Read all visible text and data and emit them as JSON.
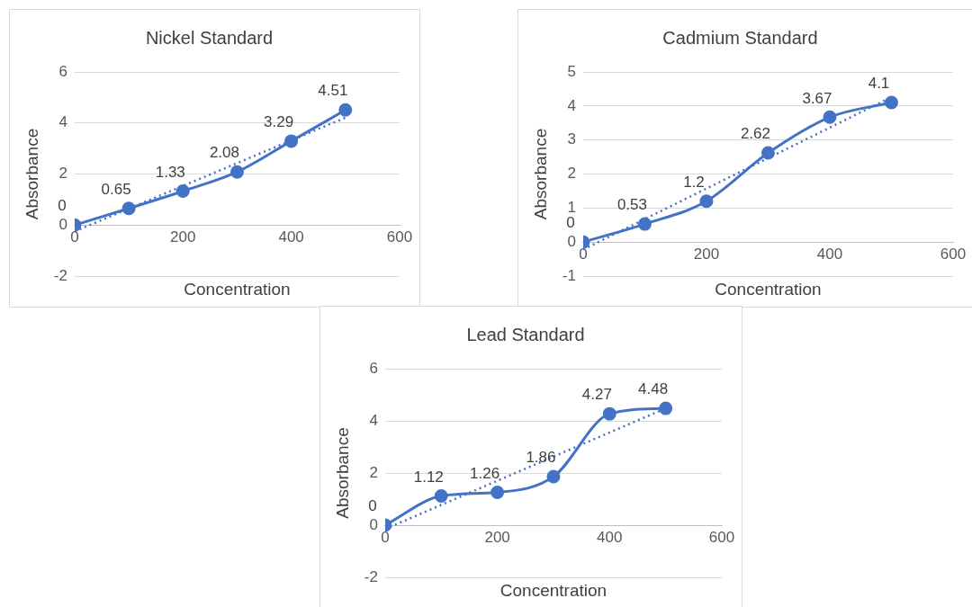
{
  "chart_data": [
    {
      "type": "line",
      "title": "Nickel Standard",
      "xlabel": "Concentration",
      "ylabel": "Absorbance",
      "xlim": [
        0,
        600
      ],
      "xticks": [
        0,
        200,
        400,
        600
      ],
      "ylim": [
        -2,
        6
      ],
      "yticks": [
        -2,
        0,
        2,
        4,
        6
      ],
      "grid": "y",
      "legend": false,
      "series": [
        {
          "color": "#4472c4",
          "x": [
            0,
            100,
            200,
            300,
            400,
            500
          ],
          "values": [
            0,
            0.65,
            1.33,
            2.08,
            3.29,
            4.51
          ],
          "value_labels": [
            "0",
            "0.65",
            "1.33",
            "2.08",
            "3.29",
            "4.51"
          ],
          "marker": "circle",
          "line_style": "solid"
        },
        {
          "type": "line",
          "color": "#4472c4",
          "x": [
            0,
            500
          ],
          "values": [
            -0.25,
            4.21
          ],
          "marker": "none",
          "line_style": "dotted"
        }
      ]
    },
    {
      "type": "line",
      "title": "Cadmium Standard",
      "xlabel": "Concentration",
      "ylabel": "Absorbance",
      "xlim": [
        0,
        600
      ],
      "xticks": [
        0,
        200,
        400,
        600
      ],
      "ylim": [
        -1,
        5
      ],
      "yticks": [
        -1,
        0,
        1,
        2,
        3,
        4,
        5
      ],
      "grid": "y",
      "legend": false,
      "series": [
        {
          "color": "#4472c4",
          "x": [
            0,
            100,
            200,
            300,
            400,
            500
          ],
          "values": [
            0,
            0.53,
            1.2,
            2.62,
            3.67,
            4.1
          ],
          "value_labels": [
            "0",
            "0.53",
            "1.2",
            "2.62",
            "3.67",
            "4.1"
          ],
          "marker": "circle",
          "line_style": "solid"
        },
        {
          "type": "line",
          "color": "#4472c4",
          "x": [
            0,
            500
          ],
          "values": [
            -0.22,
            4.26
          ],
          "marker": "none",
          "line_style": "dotted"
        }
      ]
    },
    {
      "type": "line",
      "title": "Lead Standard",
      "xlabel": "Concentration",
      "ylabel": "Absorbance",
      "xlim": [
        0,
        600
      ],
      "xticks": [
        0,
        200,
        400,
        600
      ],
      "ylim": [
        -2,
        6
      ],
      "yticks": [
        -2,
        0,
        2,
        4,
        6
      ],
      "grid": "y",
      "legend": false,
      "series": [
        {
          "color": "#4472c4",
          "x": [
            0,
            100,
            200,
            300,
            400,
            500
          ],
          "values": [
            0,
            1.12,
            1.26,
            1.86,
            4.27,
            4.48
          ],
          "value_labels": [
            "0",
            "1.12",
            "1.26",
            "1.86",
            "4.27",
            "4.48"
          ],
          "marker": "circle",
          "line_style": "solid"
        },
        {
          "type": "line",
          "color": "#4472c4",
          "x": [
            0,
            500
          ],
          "values": [
            -0.15,
            4.48
          ],
          "marker": "none",
          "line_style": "dotted"
        }
      ]
    }
  ]
}
